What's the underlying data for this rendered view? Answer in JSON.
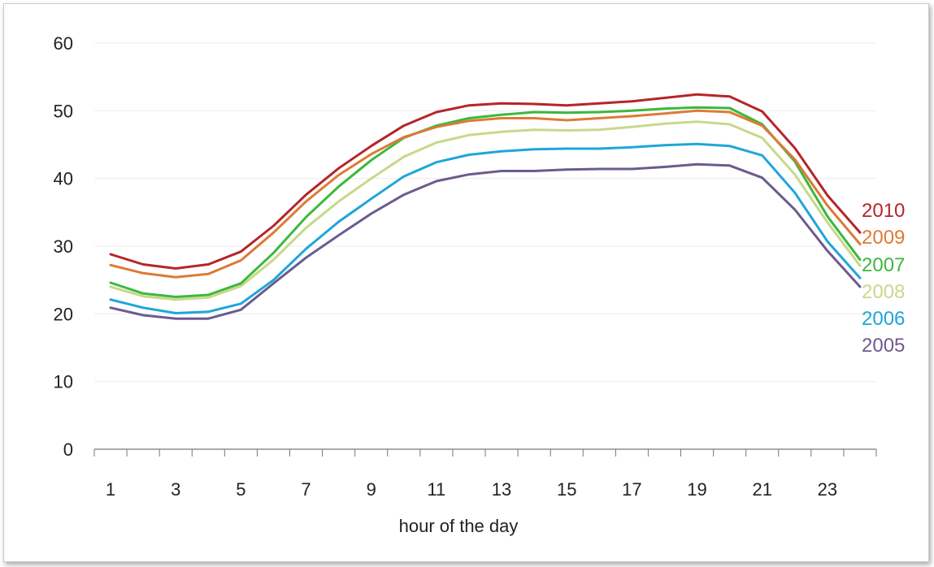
{
  "chart_data": {
    "type": "line",
    "title": "",
    "xlabel": "hour of the day",
    "ylabel": "",
    "xlim": [
      0.5,
      24.5
    ],
    "ylim": [
      0,
      60
    ],
    "yticks": [
      0,
      10,
      20,
      30,
      40,
      50,
      60
    ],
    "xtick_labels": [
      1,
      3,
      5,
      7,
      9,
      11,
      13,
      15,
      17,
      19,
      21,
      23
    ],
    "grid": true,
    "legend": "direct labels at right end of lines",
    "x": [
      1,
      2,
      3,
      4,
      5,
      6,
      7,
      8,
      9,
      10,
      11,
      12,
      13,
      14,
      15,
      16,
      17,
      18,
      19,
      20,
      21,
      22,
      23,
      24
    ],
    "series": [
      {
        "name": "2010",
        "color": "#b5252a",
        "values": [
          28.8,
          27.3,
          26.7,
          27.3,
          29.2,
          33.0,
          37.6,
          41.5,
          44.8,
          47.8,
          49.8,
          50.8,
          51.1,
          51.0,
          50.8,
          51.1,
          51.4,
          51.9,
          52.4,
          52.1,
          49.9,
          44.5,
          37.5,
          32.0
        ]
      },
      {
        "name": "2009",
        "color": "#dd7a36",
        "values": [
          27.2,
          26.0,
          25.4,
          25.9,
          27.9,
          32.0,
          36.6,
          40.5,
          43.6,
          46.1,
          47.6,
          48.5,
          48.9,
          48.9,
          48.6,
          48.9,
          49.2,
          49.6,
          50.0,
          49.8,
          47.8,
          42.8,
          36.0,
          30.3
        ]
      },
      {
        "name": "2007",
        "color": "#3cb83c",
        "values": [
          24.6,
          23.0,
          22.5,
          22.8,
          24.5,
          29.0,
          34.3,
          38.8,
          42.7,
          46.0,
          47.8,
          48.9,
          49.4,
          49.8,
          49.7,
          49.8,
          50.0,
          50.3,
          50.5,
          50.4,
          48.0,
          42.5,
          34.4,
          28.0
        ]
      },
      {
        "name": "2008",
        "color": "#c6d98a",
        "values": [
          24.0,
          22.6,
          22.1,
          22.4,
          24.1,
          28.0,
          32.7,
          36.6,
          40.0,
          43.2,
          45.3,
          46.4,
          46.9,
          47.2,
          47.1,
          47.2,
          47.6,
          48.1,
          48.4,
          48.0,
          46.0,
          40.6,
          33.5,
          27.1
        ]
      },
      {
        "name": "2006",
        "color": "#1ea6d8",
        "values": [
          22.1,
          20.9,
          20.1,
          20.3,
          21.5,
          25.0,
          29.6,
          33.6,
          37.0,
          40.3,
          42.4,
          43.5,
          44.0,
          44.3,
          44.4,
          44.4,
          44.6,
          44.9,
          45.1,
          44.8,
          43.4,
          37.9,
          30.7,
          25.3
        ]
      },
      {
        "name": "2005",
        "color": "#6d5a8f",
        "values": [
          20.9,
          19.8,
          19.3,
          19.3,
          20.6,
          24.5,
          28.3,
          31.6,
          34.8,
          37.6,
          39.6,
          40.6,
          41.1,
          41.1,
          41.3,
          41.4,
          41.4,
          41.7,
          42.1,
          41.9,
          40.1,
          35.4,
          29.3,
          24.0
        ]
      }
    ]
  }
}
